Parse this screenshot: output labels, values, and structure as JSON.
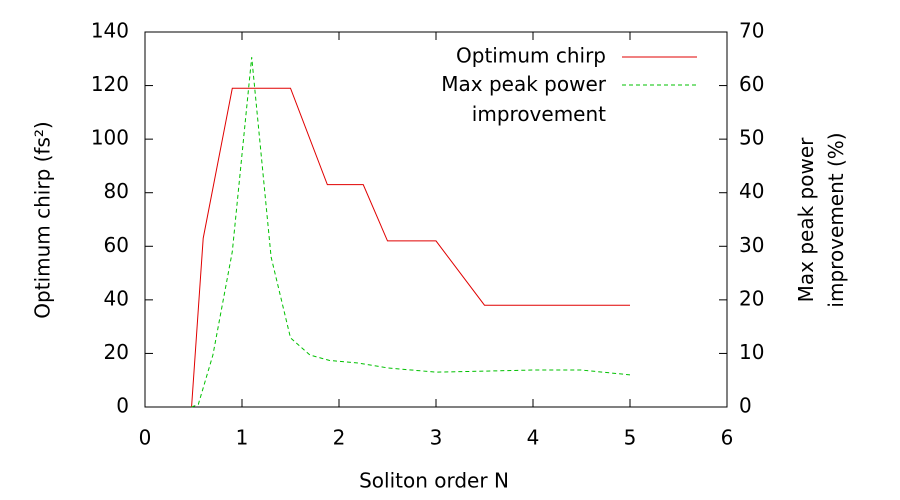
{
  "chart_data": {
    "type": "line",
    "x_label": "Soliton order N",
    "y_label": "Optimum chirp (fs²)",
    "y2_label": "Max peak power\nimprovement (%)",
    "xlim": [
      0,
      6
    ],
    "xticks": [
      0,
      1,
      2,
      3,
      4,
      5,
      6
    ],
    "ylim": [
      0,
      140
    ],
    "yticks": [
      0,
      20,
      40,
      60,
      80,
      100,
      120,
      140
    ],
    "y2lim": [
      0,
      70
    ],
    "y2ticks": [
      0,
      10,
      20,
      30,
      40,
      50,
      60,
      70
    ],
    "grid": false,
    "legend": "top-right",
    "series": [
      {
        "name": "Optimum chirp",
        "color": "#e00000",
        "dash": false,
        "x": [
          0.48,
          0.6,
          0.9,
          1.5,
          1.88,
          2.25,
          2.5,
          3.0,
          3.5,
          5.0
        ],
        "values": [
          0,
          63,
          119,
          119,
          83,
          83,
          62,
          62,
          38,
          38
        ]
      },
      {
        "name": "Max peak power\nimprovement",
        "color": "#00c000",
        "dash": true,
        "axis": "y2",
        "x": [
          0.48,
          0.55,
          0.7,
          0.9,
          1.1,
          1.3,
          1.5,
          1.7,
          1.9,
          2.2,
          2.5,
          3.0,
          3.5,
          4.0,
          4.5,
          5.0
        ],
        "values": [
          0,
          0.5,
          9.7,
          29,
          65.3,
          28,
          12.9,
          9.7,
          8.7,
          8.2,
          7.3,
          6.5,
          6.7,
          6.9,
          6.9,
          6.0
        ]
      }
    ]
  }
}
